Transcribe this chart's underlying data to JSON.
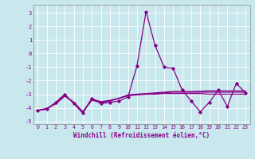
{
  "x": [
    0,
    1,
    2,
    3,
    4,
    5,
    6,
    7,
    8,
    9,
    10,
    11,
    12,
    13,
    14,
    15,
    16,
    17,
    18,
    19,
    20,
    21,
    22,
    23
  ],
  "line1": [
    -4.2,
    -4.1,
    -3.6,
    -3.0,
    -3.7,
    -4.4,
    -3.3,
    -3.7,
    -3.6,
    -3.5,
    -3.2,
    -0.9,
    3.1,
    0.6,
    -1.0,
    -1.1,
    -2.7,
    -3.5,
    -4.3,
    -3.6,
    -2.7,
    -3.9,
    -2.2,
    -2.9
  ],
  "line2": [
    -4.2,
    -4.1,
    -3.65,
    -3.05,
    -3.65,
    -4.35,
    -3.35,
    -3.55,
    -3.45,
    -3.3,
    -3.05,
    -3.0,
    -3.0,
    -3.0,
    -2.95,
    -2.95,
    -2.95,
    -2.95,
    -2.95,
    -3.0,
    -3.0,
    -3.0,
    -3.0,
    -3.0
  ],
  "line3": [
    -4.2,
    -4.05,
    -3.7,
    -3.1,
    -3.6,
    -4.3,
    -3.4,
    -3.6,
    -3.5,
    -3.3,
    -3.1,
    -3.05,
    -3.0,
    -2.95,
    -2.9,
    -2.85,
    -2.85,
    -2.85,
    -2.85,
    -2.85,
    -2.85,
    -2.85,
    -2.85,
    -2.85
  ],
  "line4": [
    -4.2,
    -4.05,
    -3.7,
    -3.15,
    -3.6,
    -4.3,
    -3.45,
    -3.6,
    -3.5,
    -3.3,
    -3.1,
    -3.0,
    -2.95,
    -2.9,
    -2.85,
    -2.8,
    -2.8,
    -2.8,
    -2.78,
    -2.75,
    -2.75,
    -2.75,
    -2.75,
    -2.75
  ],
  "ylim": [
    -5.2,
    3.6
  ],
  "xlim": [
    -0.5,
    23.5
  ],
  "yticks": [
    -5,
    -4,
    -3,
    -2,
    -1,
    0,
    1,
    2,
    3
  ],
  "xticks": [
    0,
    1,
    2,
    3,
    4,
    5,
    6,
    7,
    8,
    9,
    10,
    11,
    12,
    13,
    14,
    15,
    16,
    17,
    18,
    19,
    20,
    21,
    22,
    23
  ],
  "xlabel": "Windchill (Refroidissement éolien,°C)",
  "line_color": "#880088",
  "bg_color": "#c8e8ee",
  "grid_color": "#aacccc",
  "tick_color": "#880088",
  "label_color": "#880088"
}
